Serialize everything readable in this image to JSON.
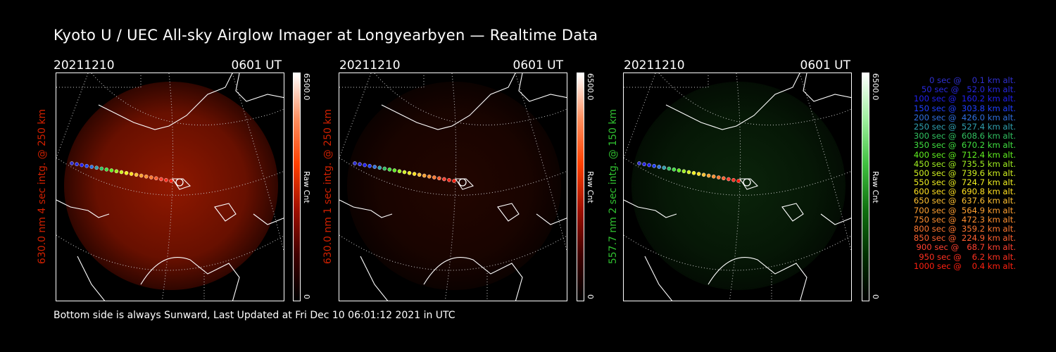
{
  "title": "Kyoto U / UEC All-sky Airglow Imager at Longyearbyen — Realtime Data",
  "footer": "Bottom side is always Sunward, Last Updated at Fri Dec 10 06:01:12 2021 in UTC",
  "panels": [
    {
      "date": "20211210",
      "time": "0601 UT",
      "ylabel": "630.0 nm  4 sec intg. @ 250 km",
      "cbar_max": "6500.0",
      "cbar_min": "0",
      "cbar_unit": "Raw Cnt",
      "label_color": "#d02000",
      "intensity": 0.75,
      "glow": "red"
    },
    {
      "date": "20211210",
      "time": "0601 UT",
      "ylabel": "630.0 nm  1 sec intg. @ 250 km",
      "cbar_max": "6500.0",
      "cbar_min": "0",
      "cbar_unit": "Raw Cnt",
      "label_color": "#d02000",
      "intensity": 0.18,
      "glow": "red"
    },
    {
      "date": "20211210",
      "time": "0601 UT",
      "ylabel": "557.7 nm  2 sec intg. @ 150 km",
      "cbar_max": "6500.0",
      "cbar_min": "0",
      "cbar_unit": "Raw Cnt",
      "label_color": "#30c030",
      "intensity": 0.4,
      "glow": "green"
    }
  ],
  "legend": [
    {
      "text": "   0 sec @    0.1 km alt.",
      "color": "#3030d0"
    },
    {
      "text": "  50 sec @   52.0 km alt.",
      "color": "#2828e0"
    },
    {
      "text": " 100 sec @  160.2 km alt.",
      "color": "#2020f0"
    },
    {
      "text": " 150 sec @  303.8 km alt.",
      "color": "#2040ff"
    },
    {
      "text": " 200 sec @  426.0 km alt.",
      "color": "#3070e0"
    },
    {
      "text": " 250 sec @  527.4 km alt.",
      "color": "#30a0b0"
    },
    {
      "text": " 300 sec @  608.6 km alt.",
      "color": "#30c060"
    },
    {
      "text": " 350 sec @  670.2 km alt.",
      "color": "#40e040"
    },
    {
      "text": " 400 sec @  712.4 km alt.",
      "color": "#60f020"
    },
    {
      "text": " 450 sec @  735.5 km alt.",
      "color": "#a0f020"
    },
    {
      "text": " 500 sec @  739.6 km alt.",
      "color": "#d0f020"
    },
    {
      "text": " 550 sec @  724.7 km alt.",
      "color": "#f0f020"
    },
    {
      "text": " 600 sec @  690.8 km alt.",
      "color": "#ffe020"
    },
    {
      "text": " 650 sec @  637.6 km alt.",
      "color": "#ffc030"
    },
    {
      "text": " 700 sec @  564.9 km alt.",
      "color": "#ffa030"
    },
    {
      "text": " 750 sec @  472.3 km alt.",
      "color": "#ff9030"
    },
    {
      "text": " 800 sec @  359.2 km alt.",
      "color": "#ff7830"
    },
    {
      "text": " 850 sec @  224.9 km alt.",
      "color": "#ff6030"
    },
    {
      "text": " 900 sec @   68.7 km alt.",
      "color": "#ff4030"
    },
    {
      "text": " 950 sec @    6.2 km alt.",
      "color": "#ff3020"
    },
    {
      "text": "1000 sec @    0.4 km alt.",
      "color": "#ff2010"
    }
  ]
}
